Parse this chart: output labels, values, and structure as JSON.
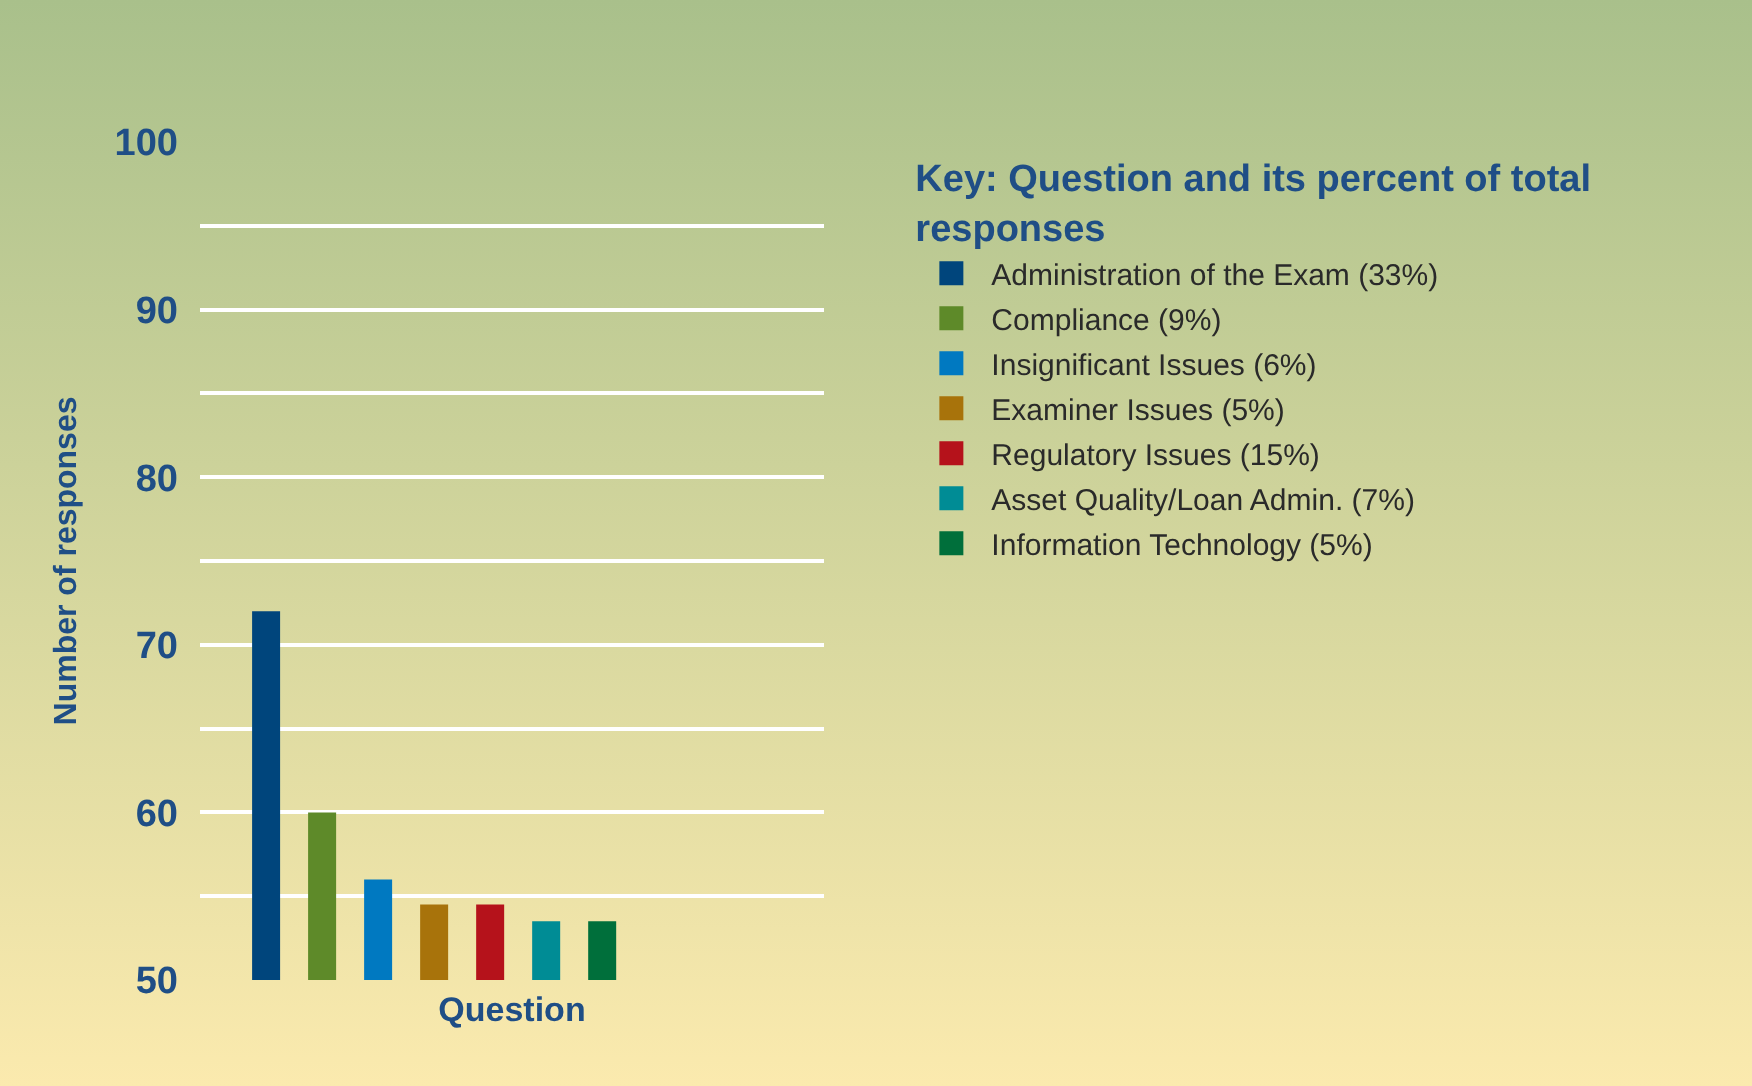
{
  "chart_data": {
    "type": "bar",
    "xlabel": "Question",
    "ylabel": "Number of responses",
    "legend_title": "Key: Question and its percent of total responses",
    "categories": [
      null
    ],
    "series": [
      {
        "name": "Administration of the Exam (33%)",
        "color": "#00457c",
        "values": [
          72
        ]
      },
      {
        "name": "Compliance (9%)",
        "color": "#5e8a29",
        "values": [
          60
        ]
      },
      {
        "name": "Insignificant Issues (6%)",
        "color": "#0079c1",
        "values": [
          56
        ]
      },
      {
        "name": "Examiner Issues (5%)",
        "color": "#a8730b",
        "values": [
          54.5
        ]
      },
      {
        "name": "Regulatory Issues (15%)",
        "color": "#b5121b",
        "values": [
          54.5
        ]
      },
      {
        "name": "Asset Quality/Loan Admin. (7%)",
        "color": "#008c95",
        "values": [
          53.5
        ]
      },
      {
        "name": "Information Technology (5%)",
        "color": "#006f3b",
        "values": [
          53.5
        ]
      }
    ],
    "ylim": [
      50,
      100
    ],
    "yticks": [
      50,
      {
        "value": 55,
        "label": null
      },
      60,
      {
        "value": 65,
        "label": null
      },
      70,
      {
        "value": 75,
        "label": null
      },
      80,
      {
        "value": 85,
        "label": null
      },
      90,
      {
        "value": 95,
        "label": null
      },
      100
    ],
    "grid": "y",
    "legend": "right",
    "tick_labels": "y"
  }
}
